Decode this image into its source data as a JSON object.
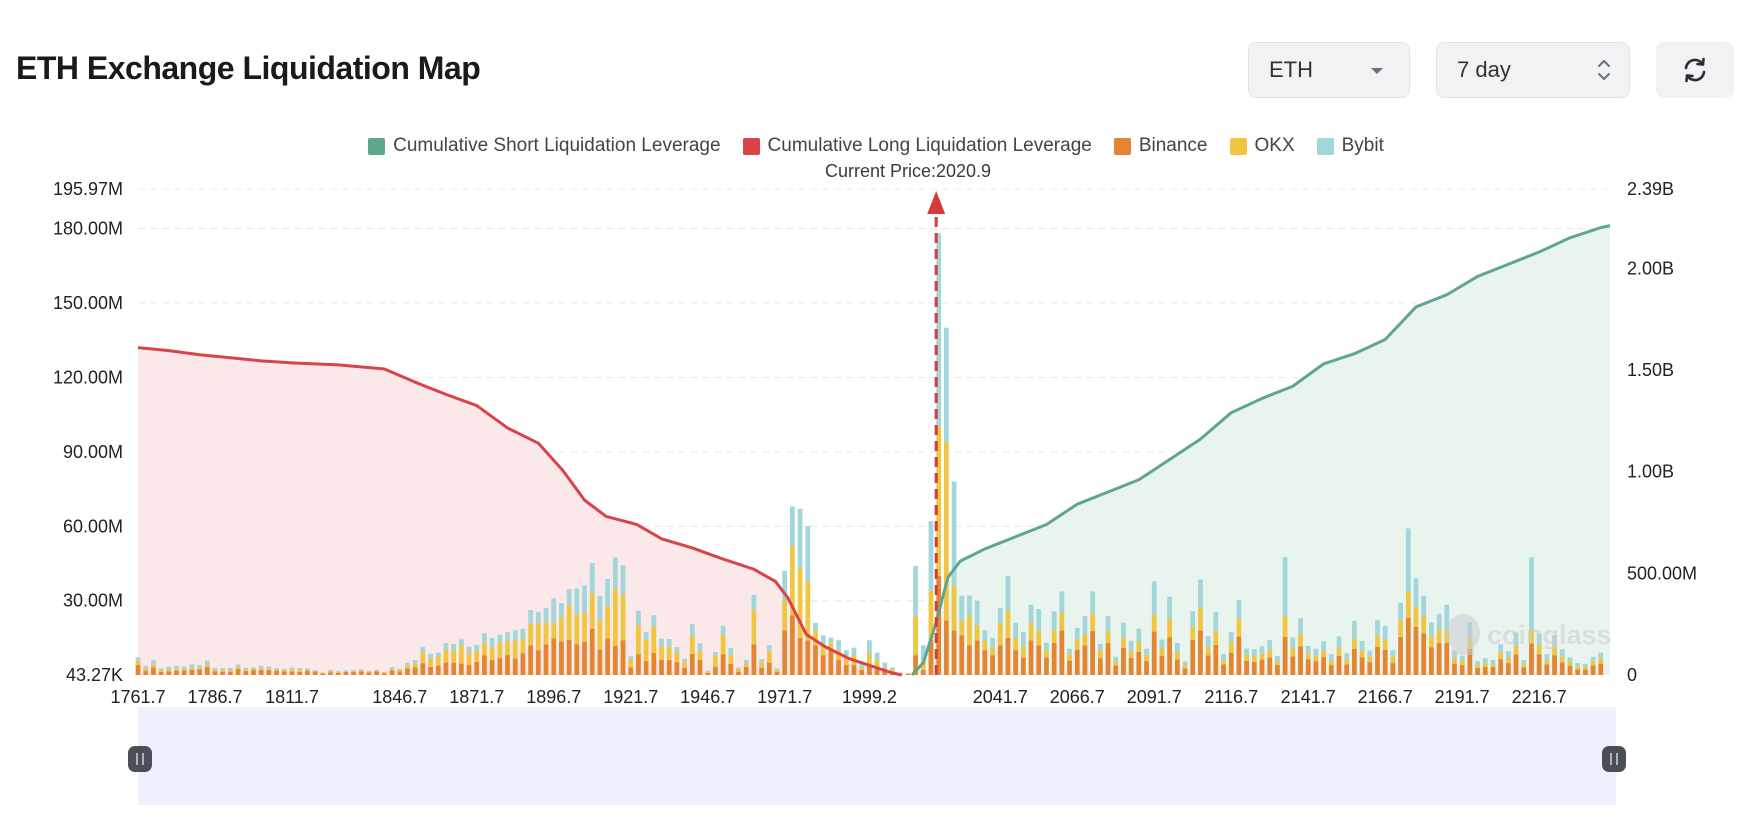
{
  "header": {
    "title": "ETH Exchange Liquidation Map",
    "symbol_select": "ETH",
    "range_select": "7 day"
  },
  "legend": [
    {
      "label": "Cumulative Short Liquidation Leverage",
      "color": "#5ea78a"
    },
    {
      "label": "Cumulative Long Liquidation Leverage",
      "color": "#d9434a"
    },
    {
      "label": "Binance",
      "color": "#e48531"
    },
    {
      "label": "OKX",
      "color": "#f0c542"
    },
    {
      "label": "Bybit",
      "color": "#a1d6da"
    }
  ],
  "watermark": "coinglass",
  "colors": {
    "short_line": "#5ea78a",
    "short_fill": "#eaf4ef",
    "long_line": "#d9434a",
    "long_fill": "#fbe9e9",
    "binance": "#e48531",
    "okx": "#f0c542",
    "bybit": "#a1d6da",
    "grid": "#e6e8eb",
    "arrow": "#d63a3a",
    "zoom_bg": "#eef1fd"
  },
  "chart_data": {
    "type": "bar",
    "title": "ETH Exchange Liquidation Map",
    "current_price_label": "Current Price:2020.9",
    "current_price": 2020.9,
    "x_range": [
      1761.7,
      2239.7
    ],
    "x_ticks": [
      1761.7,
      1786.7,
      1811.7,
      1846.7,
      1871.7,
      1896.7,
      1921.7,
      1946.7,
      1971.7,
      1999.2,
      2041.7,
      2066.7,
      2091.7,
      2116.7,
      2141.7,
      2166.7,
      2191.7,
      2216.7
    ],
    "y_left": {
      "min": 43270,
      "max": 195970000,
      "tick_values": [
        43270,
        30000000,
        60000000,
        90000000,
        120000000,
        150000000,
        180000000,
        195970000
      ],
      "tick_labels": [
        "43.27K",
        "30.00M",
        "60.00M",
        "90.00M",
        "120.00M",
        "150.00M",
        "180.00M",
        "195.97M"
      ]
    },
    "y_right": {
      "min": 0,
      "max": 2390000000,
      "tick_values": [
        0,
        500000000,
        1000000000,
        1500000000,
        2000000000,
        2390000000
      ],
      "tick_labels": [
        "0",
        "500.00M",
        "1.00B",
        "1.50B",
        "2.00B",
        "2.39B"
      ]
    },
    "series": [
      {
        "name": "Cumulative Long Liquidation Leverage",
        "type": "area",
        "axis": "right",
        "x": [
          1761.7,
          1771.7,
          1781.7,
          1791.7,
          1801.7,
          1811.7,
          1826.7,
          1841.7,
          1851.7,
          1861.7,
          1871.7,
          1881.7,
          1891.7,
          1899.7,
          1906.7,
          1913.7,
          1918.7,
          1923.7,
          1931.7,
          1941.7,
          1951.7,
          1961.7,
          1968.7,
          1972.7,
          1978.7,
          1984.7,
          1992.7,
          2000.7,
          2006.7,
          2009.7
        ],
        "y": [
          1610,
          1595,
          1575,
          1560,
          1545,
          1535,
          1525,
          1505,
          1440,
          1380,
          1325,
          1215,
          1140,
          1005,
          860,
          780,
          760,
          740,
          670,
          625,
          570,
          520,
          460,
          380,
          200,
          140,
          80,
          40,
          10,
          0
        ]
      },
      {
        "name": "Cumulative Short Liquidation Leverage",
        "type": "area",
        "axis": "right",
        "x": [
          2013.0,
          2016.7,
          2020.7,
          2024.7,
          2028.7,
          2036.7,
          2046.7,
          2056.7,
          2066.7,
          2076.7,
          2086.7,
          2096.7,
          2106.7,
          2116.7,
          2126.7,
          2136.7,
          2146.7,
          2156.7,
          2166.7,
          2176.7,
          2186.7,
          2196.7,
          2206.7,
          2216.7,
          2226.7,
          2236.7,
          2239.7
        ],
        "y": [
          0,
          60,
          250,
          480,
          560,
          620,
          680,
          740,
          840,
          900,
          960,
          1060,
          1160,
          1290,
          1360,
          1420,
          1530,
          1580,
          1650,
          1810,
          1870,
          1960,
          2020,
          2080,
          2150,
          2200,
          2210
        ]
      },
      {
        "name": "Binance",
        "type": "bar",
        "axis": "left",
        "stack": "exchanges"
      },
      {
        "name": "OKX",
        "type": "bar",
        "axis": "left",
        "stack": "exchanges"
      },
      {
        "name": "Bybit",
        "type": "bar",
        "axis": "left",
        "stack": "exchanges"
      }
    ],
    "bars": {
      "bin_width": 2.5,
      "x": [
        1761.7,
        1764.2,
        1766.7,
        1769.2,
        1771.7,
        1774.2,
        1776.7,
        1779.2,
        1781.7,
        1784.2,
        1786.7,
        1789.2,
        1791.7,
        1794.2,
        1796.7,
        1799.2,
        1801.7,
        1804.2,
        1806.7,
        1809.2,
        1811.7,
        1814.2,
        1816.7,
        1819.2,
        1821.7,
        1824.2,
        1826.7,
        1829.2,
        1831.7,
        1834.2,
        1836.7,
        1839.2,
        1841.7,
        1844.2,
        1846.7,
        1849.2,
        1851.7,
        1854.2,
        1856.7,
        1859.2,
        1861.7,
        1864.2,
        1866.7,
        1869.2,
        1871.7,
        1874.2,
        1876.7,
        1879.2,
        1881.7,
        1884.2,
        1886.7,
        1889.2,
        1891.7,
        1894.2,
        1896.7,
        1899.2,
        1901.7,
        1904.2,
        1906.7,
        1909.2,
        1911.7,
        1914.2,
        1916.7,
        1919.2,
        1921.7,
        1924.2,
        1926.7,
        1929.2,
        1931.7,
        1934.2,
        1936.7,
        1939.2,
        1941.7,
        1944.2,
        1946.7,
        1949.2,
        1951.7,
        1954.2,
        1956.7,
        1959.2,
        1961.7,
        1964.2,
        1966.7,
        1969.2,
        1971.7,
        1974.2,
        1976.7,
        1979.2,
        1981.7,
        1984.2,
        1986.7,
        1989.2,
        1991.7,
        1994.2,
        1996.7,
        1999.2,
        2001.7,
        2004.2,
        2006.7,
        2009.2,
        2011.7,
        2014.2,
        2016.7,
        2019.2,
        2021.7,
        2024.2,
        2026.7,
        2029.2,
        2031.7,
        2034.2,
        2036.7,
        2039.2,
        2041.7,
        2044.2,
        2046.7,
        2049.2,
        2051.7,
        2054.2,
        2056.7,
        2059.2,
        2061.7,
        2064.2,
        2066.7,
        2069.2,
        2071.7,
        2074.2,
        2076.7,
        2079.2,
        2081.7,
        2084.2,
        2086.7,
        2089.2,
        2091.7,
        2094.2,
        2096.7,
        2099.2,
        2101.7,
        2104.2,
        2106.7,
        2109.2,
        2111.7,
        2114.2,
        2116.7,
        2119.2,
        2121.7,
        2124.2,
        2126.7,
        2129.2,
        2131.7,
        2134.2,
        2136.7,
        2139.2,
        2141.7,
        2144.2,
        2146.7,
        2149.2,
        2151.7,
        2154.2,
        2156.7,
        2159.2,
        2161.7,
        2164.2,
        2166.7,
        2169.2,
        2171.7,
        2174.2,
        2176.7,
        2179.2,
        2181.7,
        2184.2,
        2186.7,
        2189.2,
        2191.7,
        2194.2,
        2196.7,
        2199.2,
        2201.7,
        2204.2,
        2206.7,
        2209.2,
        2211.7,
        2214.2,
        2216.7,
        2219.2,
        2221.7,
        2224.2,
        2226.7,
        2229.2,
        2231.7,
        2234.2,
        2236.7
      ],
      "binance": [
        4.0,
        1.6,
        3.0,
        1.2,
        1.5,
        1.7,
        1.8,
        2.0,
        2.3,
        3.2,
        1.5,
        1.3,
        1.3,
        2.4,
        1.7,
        2.0,
        2.0,
        2.0,
        1.7,
        1.4,
        1.5,
        1.3,
        1.6,
        1.4,
        0.6,
        1.1,
        0.9,
        1.2,
        1.3,
        1.5,
        1.0,
        1.4,
        0.7,
        1.8,
        1.4,
        2.7,
        3.1,
        4.8,
        3.3,
        3.8,
        5.1,
        5.0,
        4.6,
        4.0,
        5.3,
        8.0,
        6.0,
        6.8,
        8.1,
        6.6,
        8.8,
        12.0,
        10.0,
        12.4,
        14.8,
        13.5,
        14.2,
        12.4,
        13.4,
        18.7,
        10.3,
        14.7,
        11.8,
        13.9,
        3.0,
        8.4,
        5.6,
        8.9,
        6.2,
        6.0,
        5.2,
        2.9,
        8.5,
        6.1,
        0.8,
        3.2,
        8.3,
        4.5,
        1.2,
        3.3,
        12.3,
        2.8,
        5.0,
        1.2,
        18.0,
        24.0,
        15.0,
        14.0,
        12.0,
        8.0,
        10.0,
        6.0,
        4.0,
        4.0,
        2.0,
        4.0,
        3.0,
        2.0,
        1.0,
        0.5,
        0.5,
        8.0,
        2.0,
        14.0,
        40.0,
        22.0,
        18.0,
        16.0,
        12.0,
        14.0,
        10.0,
        8.0,
        12.0,
        15.0,
        10.0,
        7.0,
        14.0,
        12.0,
        7.1,
        13.0,
        18.0,
        5.8,
        10.2,
        11.9,
        17.7,
        6.8,
        13.0,
        3.8,
        11.0,
        6.9,
        9.4,
        5.6,
        17.5,
        7.7,
        15.2,
        6.3,
        2.6,
        14.2,
        17.9,
        7.9,
        12.1,
        4.3,
        9.0,
        15.5,
        5.7,
        5.3,
        6.2,
        7.1,
        4.1,
        15.4,
        7.5,
        11.5,
        6.3,
        5.6,
        7.3,
        4.0,
        7.7,
        4.3,
        10.5,
        7.1,
        5.2,
        11.3,
        10.2,
        4.8,
        15.4,
        23.1,
        19.4,
        16.8,
        11.2,
        12.9,
        13.0,
        4.6,
        4.0,
        10.6,
        2.8,
        3.2,
        3.2,
        6.4,
        4.8,
        8.3,
        3.1,
        12.8,
        8.4,
        4.3,
        8.0,
        5.1,
        3.6,
        2.3,
        2.2,
        3.9,
        4.6,
        2.1,
        3.5
      ],
      "okx": [
        1.6,
        1.0,
        1.3,
        0.7,
        0.9,
        0.8,
        0.7,
        1.1,
        0.6,
        1.1,
        0.7,
        0.8,
        0.9,
        0.9,
        0.5,
        0.4,
        0.9,
        0.6,
        0.4,
        0.6,
        0.8,
        0.9,
        0.4,
        0.2,
        0.2,
        0.6,
        0.3,
        0.3,
        0.3,
        0.3,
        0.4,
        0.2,
        0.3,
        0.7,
        0.6,
        1.1,
        1.5,
        4.3,
        3.2,
        3.8,
        5.1,
        4.8,
        7.4,
        4.8,
        4.6,
        5.0,
        5.3,
        6.2,
        5.6,
        7.4,
        5.7,
        8.6,
        11.0,
        8.7,
        6.1,
        9.7,
        13.8,
        12.0,
        11.9,
        14.3,
        12.0,
        12.9,
        23.0,
        18.7,
        3.2,
        11.7,
        8.6,
        10.7,
        5.6,
        5.2,
        3.9,
        2.3,
        7.1,
        3.5,
        0.6,
        4.5,
        8.0,
        3.6,
        1.2,
        1.5,
        14.0,
        2.2,
        4.8,
        0.9,
        12.0,
        28.0,
        28.0,
        24.0,
        6.0,
        4.0,
        3.0,
        4.0,
        3.0,
        4.0,
        1.0,
        5.0,
        3.0,
        1.0,
        1.0,
        0.3,
        0.2,
        16.0,
        4.0,
        20.0,
        60.0,
        72.0,
        18.0,
        6.0,
        12.0,
        6.0,
        4.0,
        3.0,
        9.0,
        11.0,
        4.9,
        4.4,
        7.2,
        5.9,
        3.1,
        5.0,
        7.2,
        2.6,
        4.4,
        4.6,
        7.0,
        3.2,
        4.7,
        1.7,
        4.2,
        2.8,
        4.1,
        2.6,
        6.9,
        3.2,
        7.4,
        3.0,
        1.4,
        5.2,
        9.3,
        3.4,
        5.7,
        1.7,
        4.2,
        7.2,
        2.4,
        2.2,
        2.4,
        3.0,
        1.5,
        8.4,
        3.2,
        5.0,
        2.4,
        2.2,
        2.6,
        1.7,
        3.5,
        1.9,
        4.1,
        2.8,
        2.2,
        4.6,
        4.1,
        2.5,
        6.8,
        10.5,
        8.2,
        7.0,
        4.5,
        5.6,
        5.5,
        2.0,
        1.8,
        4.5,
        1.2,
        1.5,
        1.1,
        2.7,
        2.2,
        3.6,
        1.3,
        5.6,
        3.7,
        1.8,
        3.5,
        2.2,
        1.7,
        1.0,
        1.1,
        1.6,
        2.0,
        0.9,
        1.4
      ],
      "bybit": [
        1.5,
        1.1,
        1.7,
        0.8,
        1.0,
        1.2,
        0.9,
        1.2,
        1.1,
        1.5,
        0.6,
        0.7,
        0.7,
        1.0,
        0.7,
        0.6,
        0.9,
        0.8,
        0.7,
        0.5,
        0.7,
        0.6,
        0.7,
        0.4,
        0.2,
        0.4,
        0.3,
        0.4,
        0.4,
        0.5,
        0.3,
        0.5,
        0.2,
        0.7,
        0.5,
        1.1,
        1.4,
        2.2,
        2.1,
        1.4,
        2.7,
        2.7,
        2.4,
        2.7,
        2.2,
        3.8,
        3.6,
        3.2,
        3.6,
        4.0,
        4.2,
        5.6,
        4.5,
        6.0,
        10.0,
        5.8,
        6.6,
        10.5,
        10.8,
        12.1,
        9.6,
        11.1,
        12.6,
        11.6,
        1.3,
        5.8,
        3.2,
        4.5,
        2.9,
        3.3,
        2.1,
        1.4,
        5.0,
        3.1,
        0.4,
        1.6,
        3.6,
        2.8,
        0.6,
        1.3,
        6.0,
        1.4,
        2.2,
        0.6,
        12.0,
        16.0,
        24.0,
        22.0,
        3.0,
        4.0,
        2.0,
        4.0,
        3.0,
        3.0,
        2.0,
        5.0,
        3.0,
        2.0,
        1.0,
        0.2,
        0.2,
        20.0,
        6.0,
        28.0,
        78.0,
        46.0,
        42.0,
        10.0,
        8.0,
        10.0,
        4.0,
        4.0,
        6.0,
        14.0,
        6.1,
        5.9,
        7.1,
        8.7,
        2.8,
        7.6,
        8.5,
        2.2,
        4.4,
        7.2,
        9.0,
        2.6,
        6.1,
        1.9,
        5.9,
        4.1,
        5.2,
        2.4,
        13.3,
        3.4,
        8.9,
        3.6,
        1.4,
        6.3,
        11.3,
        4.3,
        7.6,
        2.4,
        4.2,
        7.6,
        2.6,
        2.9,
        3.0,
        4.1,
        2.0,
        23.7,
        4.4,
        6.4,
        3.0,
        2.8,
        3.7,
        2.7,
        4.4,
        2.6,
        7.2,
        3.8,
        2.5,
        6.2,
        5.4,
        2.7,
        6.9,
        25.5,
        11.4,
        8.1,
        5.5,
        6.2,
        9.8,
        3.1,
        2.0,
        6.0,
        1.6,
        2.0,
        1.8,
        3.3,
        2.6,
        5.2,
        1.6,
        29.0,
        4.6,
        2.3,
        4.5,
        3.1,
        1.8,
        1.5,
        1.2,
        1.8,
        2.4,
        1.4,
        2.2
      ]
    }
  }
}
